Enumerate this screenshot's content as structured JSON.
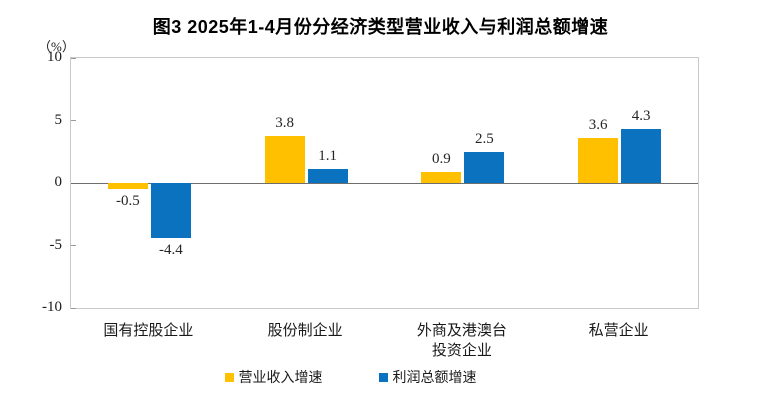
{
  "chart": {
    "title": "图3 2025年1-4月份分经济类型营业收入与利润总额增速",
    "unit_label": "（%）"
  },
  "chart_data": {
    "type": "bar",
    "title": "图3 2025年1-4月份分经济类型营业收入与利润总额增速",
    "unit": "%",
    "categories": [
      "国有控股企业",
      "股份制企业",
      "外商及港澳台\n投资企业",
      "私营企业"
    ],
    "series": [
      {
        "name": "营业收入增速",
        "color": "#FFC000",
        "values": [
          -0.5,
          3.8,
          0.9,
          3.6
        ]
      },
      {
        "name": "利润总额增速",
        "color": "#0B72C0",
        "values": [
          -4.4,
          1.1,
          2.5,
          4.3
        ]
      }
    ],
    "ylim": [
      -10,
      10
    ],
    "yticks": [
      10,
      5,
      0,
      -5,
      -10
    ],
    "grid": false,
    "legend_position": "bottom",
    "bar_value_labels": true
  }
}
